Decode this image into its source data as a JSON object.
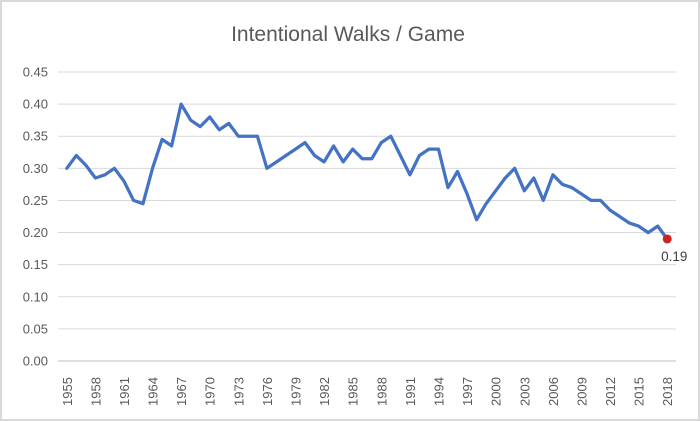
{
  "chart": {
    "title": "Intentional Walks / Game",
    "end_point_label": "0.19",
    "colors": {
      "line": "#4472C4",
      "marker": "#CC2222",
      "grid": "#D9D9D9",
      "axis": "#BFBFBF",
      "tick_text": "#595959",
      "title_text": "#595959",
      "end_label_text": "#404040",
      "border": "#D9D9D9",
      "background": "#FFFFFF"
    }
  },
  "chart_data": {
    "type": "line",
    "title": "Intentional Walks / Game",
    "xlabel": "",
    "ylabel": "",
    "ylim": [
      0.0,
      0.45
    ],
    "ytick_step": 0.05,
    "xtick_step": 3,
    "grid": true,
    "legend": "none",
    "x": [
      1955,
      1956,
      1957,
      1958,
      1959,
      1960,
      1961,
      1962,
      1963,
      1964,
      1965,
      1966,
      1967,
      1968,
      1969,
      1970,
      1971,
      1972,
      1973,
      1974,
      1975,
      1976,
      1977,
      1978,
      1979,
      1980,
      1981,
      1982,
      1983,
      1984,
      1985,
      1986,
      1987,
      1988,
      1989,
      1990,
      1991,
      1992,
      1993,
      1994,
      1995,
      1996,
      1997,
      1998,
      1999,
      2000,
      2001,
      2002,
      2003,
      2004,
      2005,
      2006,
      2007,
      2008,
      2009,
      2010,
      2011,
      2012,
      2013,
      2014,
      2015,
      2016,
      2017,
      2018
    ],
    "series": [
      {
        "name": "Intentional Walks per Game",
        "values": [
          0.3,
          0.32,
          0.305,
          0.285,
          0.29,
          0.3,
          0.28,
          0.25,
          0.245,
          0.3,
          0.345,
          0.335,
          0.4,
          0.375,
          0.365,
          0.38,
          0.36,
          0.37,
          0.35,
          0.35,
          0.35,
          0.3,
          0.31,
          0.32,
          0.33,
          0.34,
          0.32,
          0.31,
          0.335,
          0.31,
          0.33,
          0.315,
          0.315,
          0.34,
          0.35,
          0.32,
          0.29,
          0.32,
          0.33,
          0.33,
          0.27,
          0.295,
          0.26,
          0.22,
          0.245,
          0.265,
          0.285,
          0.3,
          0.265,
          0.285,
          0.25,
          0.29,
          0.275,
          0.27,
          0.26,
          0.25,
          0.25,
          0.235,
          0.225,
          0.215,
          0.21,
          0.2,
          0.21,
          0.19
        ]
      }
    ],
    "annotations": [
      {
        "x": 2018,
        "y": 0.19,
        "text": "0.19",
        "marker": "filled-circle"
      }
    ]
  }
}
